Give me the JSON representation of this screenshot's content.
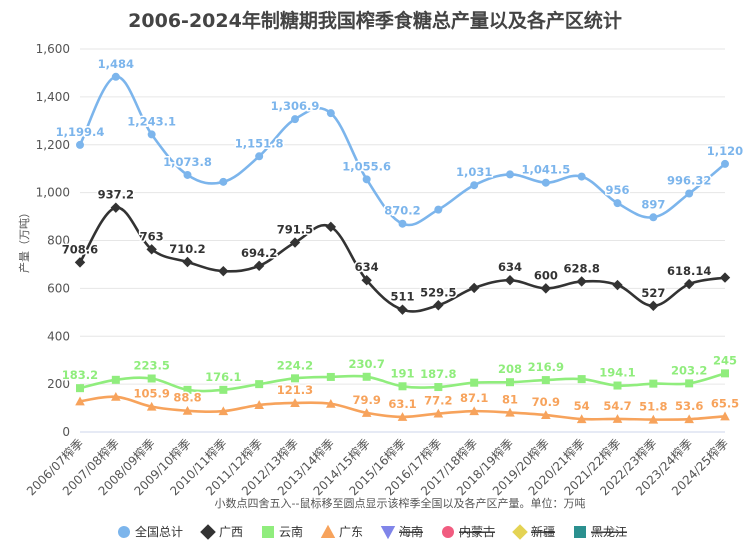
{
  "chart_data": {
    "type": "line",
    "title": "2006-2024年制糖期我国榨季食糖总产量以及各产区统计",
    "ylabel": "产量（万吨）",
    "xlabel": "",
    "note": "小数点四舍五入--鼠标移至圆点显示该榨季全国以及各产区产量。单位：万吨",
    "ylim": [
      0,
      1600
    ],
    "yticks": [
      "0",
      "200",
      "400",
      "600",
      "800",
      "1,000",
      "1,200",
      "1,400",
      "1,600"
    ],
    "categories": [
      "2006/07榨季",
      "2007/08榨季",
      "2008/09榨季",
      "2009/10榨季",
      "2010/11榨季",
      "2011/12榨季",
      "2012/13榨季",
      "2013/14榨季",
      "2014/15榨季",
      "2015/16榨季",
      "2016/17榨季",
      "2017/18榨季",
      "2018/19榨季",
      "2019/20榨季",
      "2020/21榨季",
      "2021/22榨季",
      "2022/23榨季",
      "2023/24榨季",
      "2024/25榨季"
    ],
    "series": [
      {
        "name": "全国总计",
        "color": "#7cb5ec",
        "marker": "circle",
        "visible": true,
        "values": [
          1199.4,
          1484,
          1243.1,
          1073.8,
          1045,
          1151.8,
          1306.9,
          1332,
          1055.6,
          870.2,
          929,
          1031,
          1076,
          1041.5,
          1067,
          956,
          897,
          996.32,
          1120
        ],
        "labels": [
          "1,199.4",
          "1,484",
          "1,243.1",
          "1,073.8",
          null,
          "1,151.8",
          "1,306.9",
          null,
          "1,055.6",
          "870.2",
          null,
          "1,031",
          null,
          "1,041.5",
          null,
          "956",
          "897",
          "996.32",
          "1,120"
        ]
      },
      {
        "name": "广西",
        "color": "#333333",
        "marker": "diamond",
        "visible": true,
        "values": [
          708.6,
          937.2,
          763,
          710.2,
          672,
          694.2,
          791.5,
          857,
          634,
          511,
          529.5,
          602,
          634,
          600,
          628.8,
          614,
          527,
          618.14,
          645
        ],
        "labels": [
          "708.6",
          "937.2",
          "763",
          "710.2",
          null,
          "694.2",
          "791.5",
          null,
          "634",
          "511",
          "529.5",
          null,
          "634",
          "600",
          "628.8",
          null,
          "527",
          "618.14",
          null
        ]
      },
      {
        "name": "云南",
        "color": "#90ed7d",
        "marker": "square",
        "visible": true,
        "values": [
          183.2,
          218,
          223.5,
          176,
          176.1,
          200,
          224.2,
          230,
          230.7,
          191,
          187.8,
          206,
          208,
          216.9,
          221,
          194.1,
          202,
          203.2,
          245
        ],
        "labels": [
          "183.2",
          null,
          "223.5",
          null,
          "176.1",
          null,
          "224.2",
          null,
          "230.7",
          "191",
          "187.8",
          null,
          "208",
          "216.9",
          null,
          "194.1",
          null,
          "203.2",
          "245"
        ]
      },
      {
        "name": "广东",
        "color": "#f7a35c",
        "marker": "triangle",
        "visible": true,
        "values": [
          128,
          147,
          105.9,
          88.8,
          87,
          113,
          121.3,
          118,
          79.9,
          63.1,
          77.2,
          87.1,
          81,
          70.9,
          54,
          54.7,
          51.8,
          53.6,
          65.5
        ],
        "labels": [
          null,
          null,
          "105.9",
          "88.8",
          null,
          null,
          "121.3",
          null,
          "79.9",
          "63.1",
          "77.2",
          "87.1",
          "81",
          "70.9",
          "54",
          "54.7",
          "51.8",
          "53.6",
          "65.5"
        ]
      }
    ],
    "legend": [
      {
        "name": "全国总计",
        "color": "#7cb5ec",
        "marker": "circle",
        "visible": true
      },
      {
        "name": "广西",
        "color": "#333333",
        "marker": "diamond",
        "visible": true
      },
      {
        "name": "云南",
        "color": "#90ed7d",
        "marker": "square",
        "visible": true
      },
      {
        "name": "广东",
        "color": "#f7a35c",
        "marker": "triangle",
        "visible": true
      },
      {
        "name": "海南",
        "color": "#8085e9",
        "marker": "triangle-down",
        "visible": false
      },
      {
        "name": "内蒙古",
        "color": "#f15c80",
        "marker": "circle",
        "visible": false
      },
      {
        "name": "新疆",
        "color": "#e4d354",
        "marker": "diamond",
        "visible": false
      },
      {
        "name": "黑龙江",
        "color": "#2b908f",
        "marker": "square",
        "visible": false
      }
    ],
    "legend_position": "bottom",
    "grid": true
  }
}
